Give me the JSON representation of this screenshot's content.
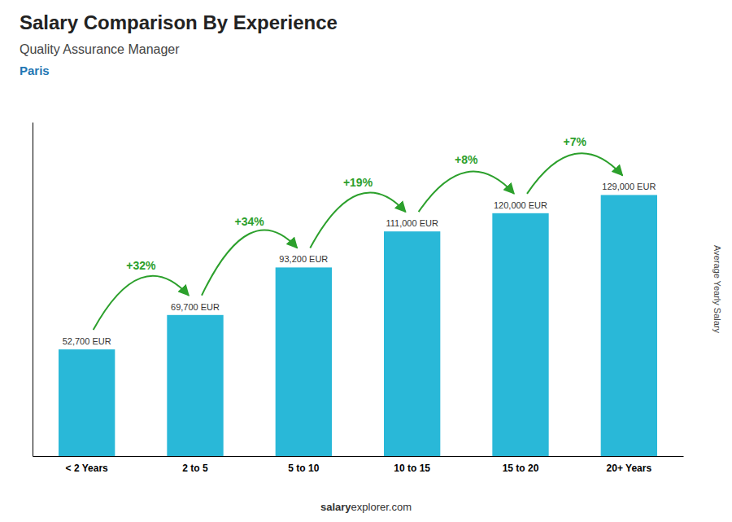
{
  "chart_data": {
    "type": "bar",
    "title": "Salary Comparison By Experience",
    "subtitle": "Quality Assurance Manager",
    "annotations": {
      "city": "Paris",
      "changes": [
        "+32%",
        "+34%",
        "+19%",
        "+8%",
        "+7%"
      ],
      "footer": [
        "salary",
        "explorer.com"
      ]
    },
    "ylabel": "Average Yearly Salary",
    "categories": [
      "< 2 Years",
      "2 to 5",
      "5 to 10",
      "10 to 15",
      "15 to 20",
      "20+ Years"
    ],
    "values": [
      52700,
      69700,
      93200,
      111000,
      120000,
      129000
    ],
    "value_labels": [
      "52,700 EUR",
      "69,700 EUR",
      "93,200 EUR",
      "111,000 EUR",
      "120,000 EUR",
      "129,000 EUR"
    ],
    "color": "#29B8D8",
    "ylim": [
      0,
      165000
    ],
    "data_labels": true,
    "tick_labels": "x",
    "grid": false
  }
}
